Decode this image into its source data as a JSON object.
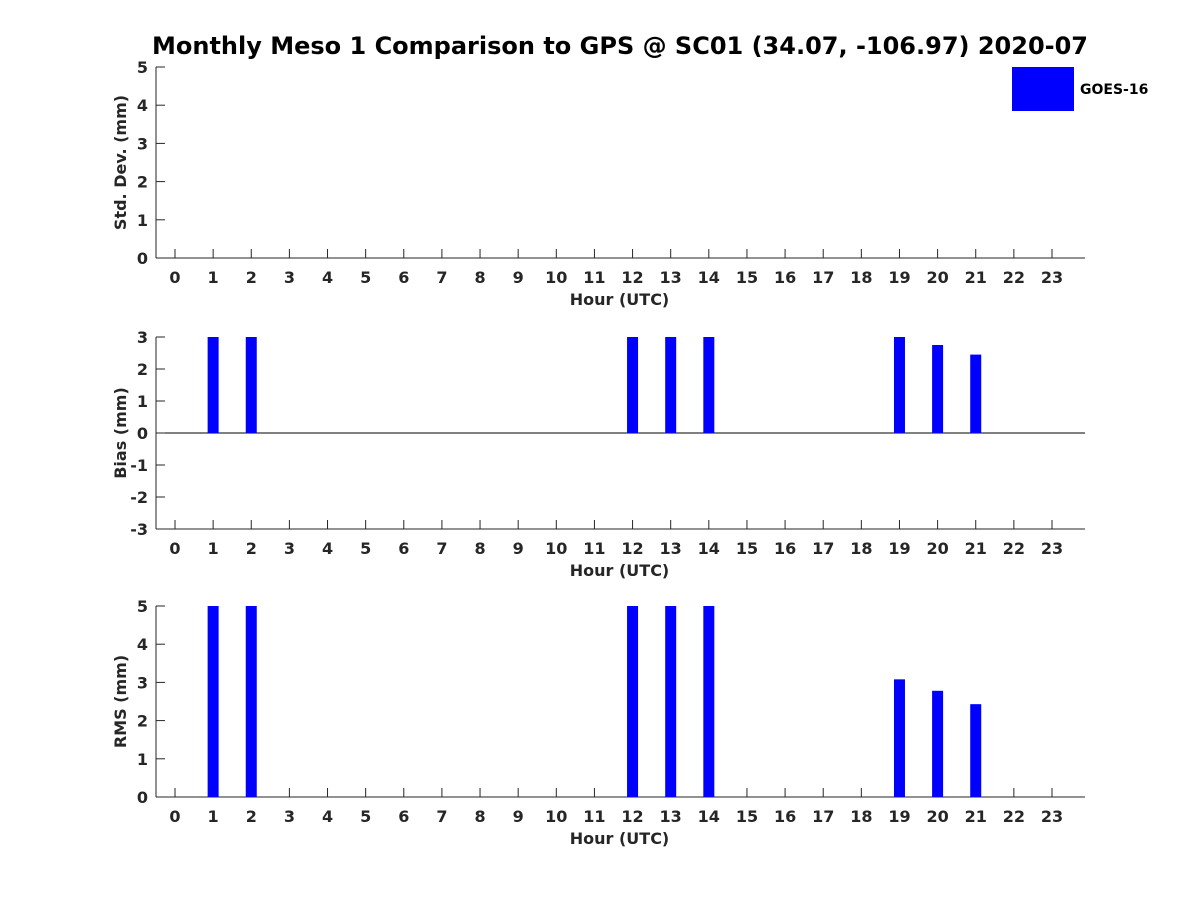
{
  "figure_title": "Monthly Meso 1 Comparison to GPS @ SC01 (34.07, -106.97) 2020-07",
  "legend": {
    "label": "GOES-16",
    "color": "#0000ff"
  },
  "colors": {
    "bar": "#0000ff",
    "axis": "#262626",
    "background": "#ffffff"
  },
  "chart_data": [
    {
      "type": "bar",
      "title": "",
      "xlabel": "Hour (UTC)",
      "ylabel": "Std. Dev. (mm)",
      "categories": [
        "0",
        "1",
        "2",
        "3",
        "4",
        "5",
        "6",
        "7",
        "8",
        "9",
        "10",
        "11",
        "12",
        "13",
        "14",
        "15",
        "16",
        "17",
        "18",
        "19",
        "20",
        "21",
        "22",
        "23"
      ],
      "ylim": [
        0,
        5
      ],
      "yticks": [
        "0",
        "1",
        "2",
        "3",
        "4",
        "5"
      ],
      "zero_line": false,
      "grid": false,
      "series": [
        {
          "name": "GOES-16",
          "values": [
            null,
            null,
            null,
            null,
            null,
            null,
            null,
            null,
            null,
            null,
            null,
            null,
            null,
            null,
            null,
            null,
            null,
            null,
            null,
            null,
            null,
            null,
            null,
            null
          ]
        }
      ]
    },
    {
      "type": "bar",
      "title": "",
      "xlabel": "Hour (UTC)",
      "ylabel": "Bias (mm)",
      "categories": [
        "0",
        "1",
        "2",
        "3",
        "4",
        "5",
        "6",
        "7",
        "8",
        "9",
        "10",
        "11",
        "12",
        "13",
        "14",
        "15",
        "16",
        "17",
        "18",
        "19",
        "20",
        "21",
        "22",
        "23"
      ],
      "ylim": [
        -3,
        3
      ],
      "yticks": [
        "-3",
        "-2",
        "-1",
        "0",
        "1",
        "2",
        "3"
      ],
      "zero_line": true,
      "grid": false,
      "series": [
        {
          "name": "GOES-16",
          "values": [
            null,
            3,
            3,
            null,
            null,
            null,
            null,
            null,
            null,
            null,
            null,
            null,
            3,
            3,
            3,
            null,
            null,
            null,
            null,
            3,
            2.75,
            2.45,
            null,
            null
          ]
        }
      ]
    },
    {
      "type": "bar",
      "title": "",
      "xlabel": "Hour (UTC)",
      "ylabel": "RMS (mm)",
      "categories": [
        "0",
        "1",
        "2",
        "3",
        "4",
        "5",
        "6",
        "7",
        "8",
        "9",
        "10",
        "11",
        "12",
        "13",
        "14",
        "15",
        "16",
        "17",
        "18",
        "19",
        "20",
        "21",
        "22",
        "23"
      ],
      "ylim": [
        0,
        5
      ],
      "yticks": [
        "0",
        "1",
        "2",
        "3",
        "4",
        "5"
      ],
      "zero_line": false,
      "grid": false,
      "series": [
        {
          "name": "GOES-16",
          "values": [
            null,
            5,
            5,
            null,
            null,
            null,
            null,
            null,
            null,
            null,
            null,
            null,
            5,
            5,
            5,
            null,
            null,
            null,
            null,
            3.08,
            2.78,
            2.43,
            null,
            null
          ]
        }
      ]
    }
  ]
}
